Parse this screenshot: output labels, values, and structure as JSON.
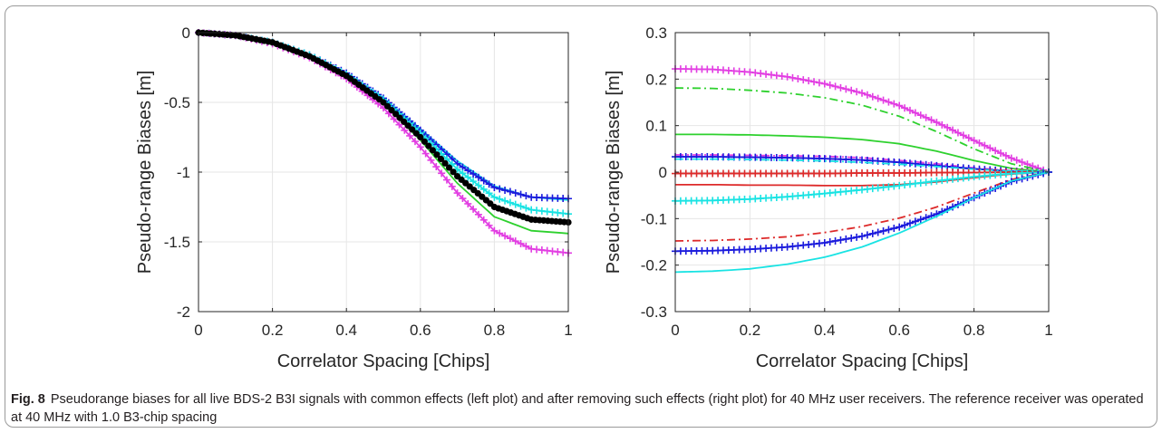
{
  "caption": {
    "label": "Fig. 8",
    "text": "Pseudorange biases for all live BDS-2 B3I signals with common effects (left plot) and after removing such effects (right plot) for 40 MHz user receivers. The reference receiver was operated at 40 MHz with 1.0 B3-chip spacing"
  },
  "colors": {
    "blue": "#1a1adc",
    "cyan": "#19e3e3",
    "green": "#2ed12e",
    "magenta": "#e23ee2",
    "red": "#dd2a2a",
    "black": "#000000",
    "grid": "#e6e6e6",
    "axis": "#262626"
  },
  "chart_data": [
    {
      "type": "line",
      "title": "",
      "xlabel": "Correlator Spacing [Chips]",
      "ylabel": "Pseudo-range Biases [m]",
      "xlim": [
        0,
        1
      ],
      "ylim": [
        -2,
        0
      ],
      "xticks": [
        0,
        0.2,
        0.4,
        0.6,
        0.8,
        1
      ],
      "xtick_labels": [
        "0",
        "0.2",
        "0.4",
        "0.6",
        "0.8",
        "1"
      ],
      "yticks": [
        0,
        -0.5,
        -1,
        -1.5,
        -2
      ],
      "ytick_labels": [
        "0",
        "-0.5",
        "-1",
        "-1.5",
        "-2"
      ],
      "grid": true,
      "series": [
        {
          "color": "cyan",
          "style": "solid",
          "marker": "none",
          "x": [
            0,
            0.1,
            0.2,
            0.3,
            0.4,
            0.5,
            0.6,
            0.7,
            0.8,
            0.9,
            1.0
          ],
          "y": [
            0,
            -0.02,
            -0.07,
            -0.16,
            -0.29,
            -0.47,
            -0.69,
            -0.92,
            -1.1,
            -1.18,
            -1.2
          ]
        },
        {
          "color": "blue",
          "style": "solid",
          "marker": "+",
          "x": [
            0,
            0.1,
            0.2,
            0.3,
            0.4,
            0.5,
            0.6,
            0.7,
            0.8,
            0.9,
            1.0
          ],
          "y": [
            0,
            -0.02,
            -0.07,
            -0.16,
            -0.29,
            -0.47,
            -0.7,
            -0.94,
            -1.11,
            -1.18,
            -1.19
          ]
        },
        {
          "color": "cyan",
          "style": "solid",
          "marker": "+",
          "x": [
            0,
            0.1,
            0.2,
            0.3,
            0.4,
            0.5,
            0.6,
            0.7,
            0.8,
            0.9,
            1.0
          ],
          "y": [
            0,
            -0.02,
            -0.07,
            -0.16,
            -0.3,
            -0.48,
            -0.72,
            -0.98,
            -1.18,
            -1.27,
            -1.3
          ]
        },
        {
          "color": "green",
          "style": "solid",
          "marker": "none",
          "x": [
            0,
            0.1,
            0.2,
            0.3,
            0.4,
            0.5,
            0.6,
            0.7,
            0.8,
            0.9,
            1.0
          ],
          "y": [
            0,
            -0.02,
            -0.07,
            -0.17,
            -0.31,
            -0.51,
            -0.77,
            -1.08,
            -1.32,
            -1.42,
            -1.44
          ]
        },
        {
          "color": "magenta",
          "style": "solid",
          "marker": "+",
          "x": [
            0,
            0.1,
            0.2,
            0.3,
            0.4,
            0.5,
            0.6,
            0.7,
            0.8,
            0.9,
            1.0
          ],
          "y": [
            0,
            -0.02,
            -0.08,
            -0.18,
            -0.33,
            -0.54,
            -0.82,
            -1.15,
            -1.42,
            -1.55,
            -1.58
          ]
        },
        {
          "color": "black",
          "style": "solid",
          "marker": "o",
          "x": [
            0,
            0.1,
            0.2,
            0.3,
            0.4,
            0.5,
            0.6,
            0.7,
            0.8,
            0.9,
            1.0
          ],
          "y": [
            0,
            -0.02,
            -0.07,
            -0.17,
            -0.31,
            -0.5,
            -0.75,
            -1.03,
            -1.25,
            -1.34,
            -1.36
          ]
        }
      ]
    },
    {
      "type": "line",
      "title": "",
      "xlabel": "Correlator Spacing [Chips]",
      "ylabel": "Pseudo-range Biases [m]",
      "xlim": [
        0,
        1
      ],
      "ylim": [
        -0.3,
        0.3
      ],
      "xticks": [
        0,
        0.2,
        0.4,
        0.6,
        0.8,
        1
      ],
      "xtick_labels": [
        "0",
        "0.2",
        "0.4",
        "0.6",
        "0.8",
        "1"
      ],
      "yticks": [
        0.3,
        0.2,
        0.1,
        0,
        -0.1,
        -0.2,
        -0.3
      ],
      "ytick_labels": [
        "0.3",
        "0.2",
        "0.1",
        "0",
        "-0.1",
        "-0.2",
        "-0.3"
      ],
      "grid": true,
      "series": [
        {
          "color": "magenta",
          "style": "solid",
          "marker": "+",
          "x": [
            0,
            0.1,
            0.2,
            0.3,
            0.4,
            0.5,
            0.6,
            0.7,
            0.8,
            0.9,
            1.0
          ],
          "y": [
            0.222,
            0.221,
            0.215,
            0.205,
            0.19,
            0.17,
            0.143,
            0.107,
            0.068,
            0.03,
            0
          ]
        },
        {
          "color": "green",
          "style": "dashdot",
          "marker": "none",
          "x": [
            0,
            0.1,
            0.2,
            0.3,
            0.4,
            0.5,
            0.6,
            0.7,
            0.8,
            0.9,
            1.0
          ],
          "y": [
            0.181,
            0.18,
            0.176,
            0.17,
            0.16,
            0.144,
            0.12,
            0.087,
            0.05,
            0.018,
            0
          ]
        },
        {
          "color": "green",
          "style": "solid",
          "marker": "none",
          "x": [
            0,
            0.1,
            0.2,
            0.3,
            0.4,
            0.5,
            0.6,
            0.7,
            0.8,
            0.9,
            1.0
          ],
          "y": [
            0.081,
            0.081,
            0.08,
            0.078,
            0.075,
            0.07,
            0.061,
            0.045,
            0.025,
            0.008,
            0
          ]
        },
        {
          "color": "magenta",
          "style": "dashdot",
          "marker": "none",
          "x": [
            0,
            0.1,
            0.2,
            0.3,
            0.4,
            0.5,
            0.6,
            0.7,
            0.8,
            0.9,
            1.0
          ],
          "y": [
            0.037,
            0.037,
            0.036,
            0.035,
            0.034,
            0.031,
            0.025,
            0.018,
            0.009,
            0.003,
            0
          ]
        },
        {
          "color": "blue",
          "style": "solid",
          "marker": "+",
          "x": [
            0,
            0.1,
            0.2,
            0.3,
            0.4,
            0.5,
            0.6,
            0.7,
            0.8,
            0.9,
            1.0
          ],
          "y": [
            0.033,
            0.033,
            0.032,
            0.031,
            0.029,
            0.026,
            0.021,
            0.014,
            0.007,
            0.002,
            0
          ]
        },
        {
          "color": "cyan",
          "style": "dashdot",
          "marker": "none",
          "x": [
            0,
            0.1,
            0.2,
            0.3,
            0.4,
            0.5,
            0.6,
            0.7,
            0.8,
            0.9,
            1.0
          ],
          "y": [
            0.028,
            0.028,
            0.027,
            0.026,
            0.024,
            0.021,
            0.017,
            0.012,
            0.006,
            0.002,
            0
          ]
        },
        {
          "color": "red",
          "style": "solid",
          "marker": "+",
          "x": [
            0,
            0.1,
            0.2,
            0.3,
            0.4,
            0.5,
            0.6,
            0.7,
            0.8,
            0.9,
            1.0
          ],
          "y": [
            -0.003,
            -0.003,
            -0.003,
            -0.003,
            -0.003,
            -0.002,
            -0.002,
            -0.001,
            -0.001,
            0,
            0
          ]
        },
        {
          "color": "red",
          "style": "solid",
          "marker": "none",
          "x": [
            0,
            0.1,
            0.2,
            0.3,
            0.4,
            0.5,
            0.6,
            0.7,
            0.8,
            0.9,
            1.0
          ],
          "y": [
            -0.027,
            -0.027,
            -0.028,
            -0.028,
            -0.029,
            -0.029,
            -0.027,
            -0.021,
            -0.012,
            -0.004,
            0
          ]
        },
        {
          "color": "cyan",
          "style": "solid",
          "marker": "+",
          "x": [
            0,
            0.1,
            0.2,
            0.3,
            0.4,
            0.5,
            0.6,
            0.7,
            0.8,
            0.9,
            1.0
          ],
          "y": [
            -0.062,
            -0.061,
            -0.058,
            -0.053,
            -0.046,
            -0.038,
            -0.029,
            -0.019,
            -0.01,
            -0.003,
            0
          ]
        },
        {
          "color": "red",
          "style": "dashdot",
          "marker": "none",
          "x": [
            0,
            0.1,
            0.2,
            0.3,
            0.4,
            0.5,
            0.6,
            0.7,
            0.8,
            0.9,
            1.0
          ],
          "y": [
            -0.148,
            -0.147,
            -0.144,
            -0.139,
            -0.13,
            -0.117,
            -0.099,
            -0.075,
            -0.045,
            -0.016,
            0
          ]
        },
        {
          "color": "blue",
          "style": "solid",
          "marker": "+",
          "x": [
            0,
            0.1,
            0.2,
            0.3,
            0.4,
            0.5,
            0.6,
            0.7,
            0.8,
            0.9,
            1.0
          ],
          "y": [
            -0.17,
            -0.169,
            -0.166,
            -0.161,
            -0.152,
            -0.138,
            -0.118,
            -0.09,
            -0.055,
            -0.02,
            0
          ]
        },
        {
          "color": "cyan",
          "style": "solid",
          "marker": "none",
          "x": [
            0,
            0.1,
            0.2,
            0.3,
            0.4,
            0.5,
            0.6,
            0.7,
            0.8,
            0.9,
            1.0
          ],
          "y": [
            -0.215,
            -0.213,
            -0.208,
            -0.198,
            -0.183,
            -0.161,
            -0.131,
            -0.095,
            -0.055,
            -0.019,
            0
          ]
        }
      ]
    }
  ]
}
